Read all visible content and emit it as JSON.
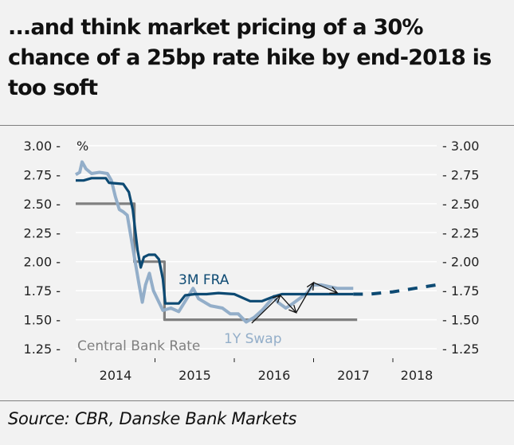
{
  "title": "...and think market pricing of a 30% chance of a 25bp rate hike by end-2018 is too soft",
  "source": "Source: CBR, Danske Bank Markets",
  "chart_data": {
    "type": "line",
    "title": "...and think market pricing of a 30% chance of a 25bp rate hike by end-2018 is too soft",
    "ylabel": "%",
    "ylim": [
      1.25,
      3.0
    ],
    "yticks": [
      "3.00",
      "2.75",
      "2.50",
      "2.25",
      "2.00",
      "1.75",
      "1.50",
      "1.25"
    ],
    "ytick_values": [
      3.0,
      2.75,
      2.5,
      2.25,
      2.0,
      1.75,
      1.5,
      1.25
    ],
    "xlim": [
      2014.0,
      2018.55
    ],
    "xticks": [
      "2014",
      "2015",
      "2016",
      "2017",
      "2018"
    ],
    "grid": true,
    "legend": "inline labels",
    "colors": {
      "fra": "#0d4a73",
      "swap": "#93aec9",
      "cbr": "#808080",
      "arrows": "#111111"
    },
    "series": [
      {
        "name": "Central Bank Rate",
        "style": "step",
        "points": [
          [
            2014.0,
            2.5
          ],
          [
            2014.74,
            2.5
          ],
          [
            2014.74,
            2.0
          ],
          [
            2015.12,
            2.0
          ],
          [
            2015.12,
            1.5
          ],
          [
            2017.55,
            1.5
          ]
        ]
      },
      {
        "name": "3M FRA",
        "style": "solid",
        "points": [
          [
            2014.0,
            2.7
          ],
          [
            2014.1,
            2.7
          ],
          [
            2014.2,
            2.72
          ],
          [
            2014.38,
            2.72
          ],
          [
            2014.42,
            2.68
          ],
          [
            2014.6,
            2.67
          ],
          [
            2014.67,
            2.6
          ],
          [
            2014.72,
            2.45
          ],
          [
            2014.78,
            2.1
          ],
          [
            2014.82,
            1.95
          ],
          [
            2014.86,
            2.04
          ],
          [
            2014.92,
            2.06
          ],
          [
            2015.0,
            2.06
          ],
          [
            2015.05,
            2.02
          ],
          [
            2015.1,
            1.85
          ],
          [
            2015.13,
            1.64
          ],
          [
            2015.3,
            1.64
          ],
          [
            2015.38,
            1.71
          ],
          [
            2015.5,
            1.72
          ],
          [
            2015.65,
            1.72
          ],
          [
            2015.8,
            1.73
          ],
          [
            2016.0,
            1.72
          ],
          [
            2016.2,
            1.66
          ],
          [
            2016.35,
            1.66
          ],
          [
            2016.5,
            1.7
          ],
          [
            2016.6,
            1.72
          ],
          [
            2017.0,
            1.72
          ],
          [
            2017.5,
            1.72
          ]
        ]
      },
      {
        "name": "3M FRA forecast",
        "style": "dashed",
        "points": [
          [
            2017.5,
            1.72
          ],
          [
            2017.7,
            1.72
          ],
          [
            2018.0,
            1.74
          ],
          [
            2018.55,
            1.8
          ]
        ]
      },
      {
        "name": "1Y Swap",
        "style": "solid",
        "points": [
          [
            2014.0,
            2.75
          ],
          [
            2014.05,
            2.77
          ],
          [
            2014.08,
            2.86
          ],
          [
            2014.13,
            2.8
          ],
          [
            2014.2,
            2.76
          ],
          [
            2014.3,
            2.77
          ],
          [
            2014.4,
            2.76
          ],
          [
            2014.45,
            2.7
          ],
          [
            2014.5,
            2.56
          ],
          [
            2014.55,
            2.45
          ],
          [
            2014.6,
            2.43
          ],
          [
            2014.65,
            2.4
          ],
          [
            2014.7,
            2.2
          ],
          [
            2014.75,
            2.0
          ],
          [
            2014.8,
            1.8
          ],
          [
            2014.84,
            1.65
          ],
          [
            2014.88,
            1.8
          ],
          [
            2014.93,
            1.9
          ],
          [
            2014.98,
            1.75
          ],
          [
            2015.05,
            1.65
          ],
          [
            2015.1,
            1.58
          ],
          [
            2015.2,
            1.6
          ],
          [
            2015.3,
            1.57
          ],
          [
            2015.4,
            1.68
          ],
          [
            2015.48,
            1.77
          ],
          [
            2015.55,
            1.68
          ],
          [
            2015.7,
            1.62
          ],
          [
            2015.85,
            1.6
          ],
          [
            2015.95,
            1.55
          ],
          [
            2016.05,
            1.55
          ],
          [
            2016.15,
            1.48
          ],
          [
            2016.25,
            1.52
          ],
          [
            2016.35,
            1.58
          ],
          [
            2016.45,
            1.66
          ],
          [
            2016.5,
            1.7
          ],
          [
            2016.55,
            1.65
          ],
          [
            2016.65,
            1.6
          ],
          [
            2016.72,
            1.63
          ],
          [
            2016.8,
            1.67
          ],
          [
            2016.9,
            1.72
          ],
          [
            2017.0,
            1.8
          ],
          [
            2017.1,
            1.8
          ],
          [
            2017.3,
            1.77
          ],
          [
            2017.5,
            1.77
          ]
        ]
      }
    ],
    "annotations": [
      {
        "text": "3M FRA",
        "series": "3M FRA"
      },
      {
        "text": "1Y Swap",
        "series": "1Y Swap"
      },
      {
        "text": "Central Bank Rate",
        "series": "Central Bank Rate"
      }
    ],
    "arrows": [
      [
        [
          2016.22,
          1.47
        ],
        [
          2016.58,
          1.71
        ]
      ],
      [
        [
          2016.58,
          1.71
        ],
        [
          2016.78,
          1.56
        ]
      ],
      [
        [
          2016.78,
          1.56
        ],
        [
          2017.0,
          1.82
        ]
      ],
      [
        [
          2017.0,
          1.82
        ],
        [
          2017.3,
          1.73
        ]
      ]
    ]
  }
}
